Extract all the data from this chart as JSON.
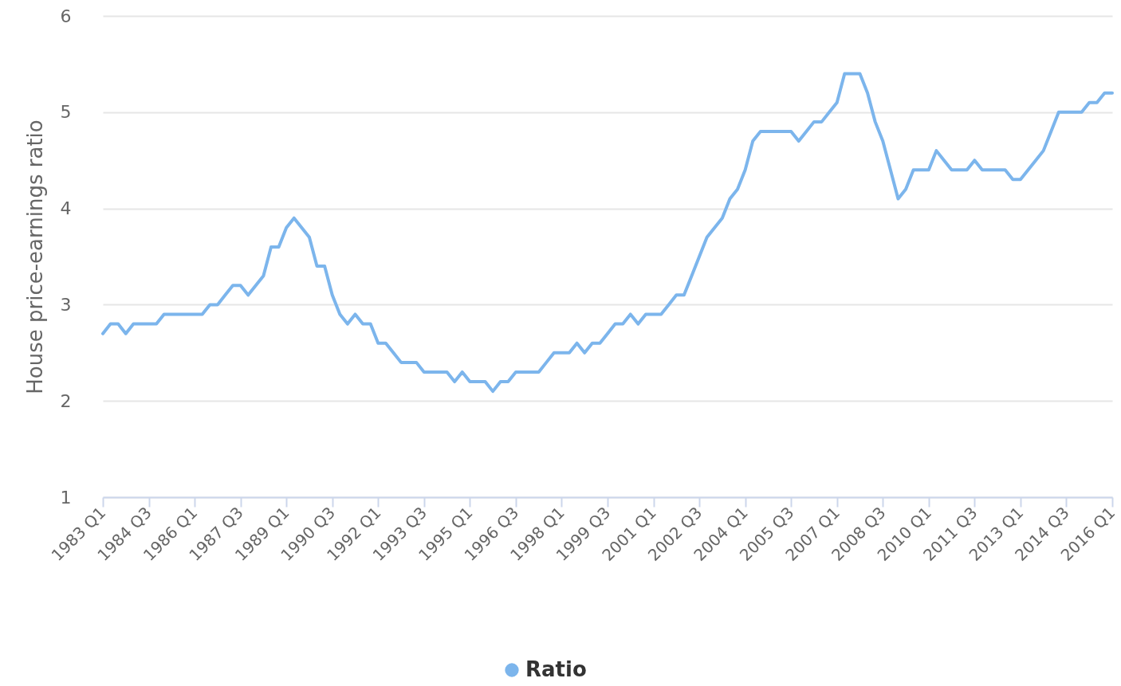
{
  "chart_data": {
    "type": "line",
    "ylabel": "House price-earnings ratio",
    "categories": [
      "1983 Q1",
      null,
      null,
      null,
      null,
      null,
      "1984 Q3",
      null,
      null,
      null,
      null,
      null,
      "1986 Q1",
      null,
      null,
      null,
      null,
      null,
      "1987 Q3",
      null,
      null,
      null,
      null,
      null,
      "1989 Q1",
      null,
      null,
      null,
      null,
      null,
      "1990 Q3",
      null,
      null,
      null,
      null,
      null,
      "1992 Q1",
      null,
      null,
      null,
      null,
      null,
      "1993 Q3",
      null,
      null,
      null,
      null,
      null,
      "1995 Q1",
      null,
      null,
      null,
      null,
      null,
      "1996 Q3",
      null,
      null,
      null,
      null,
      null,
      "1998 Q1",
      null,
      null,
      null,
      null,
      null,
      "1999 Q3",
      null,
      null,
      null,
      null,
      null,
      "2001 Q1",
      null,
      null,
      null,
      null,
      null,
      "2002 Q3",
      null,
      null,
      null,
      null,
      null,
      "2004 Q1",
      null,
      null,
      null,
      null,
      null,
      "2005 Q3",
      null,
      null,
      null,
      null,
      null,
      "2007 Q1",
      null,
      null,
      null,
      null,
      null,
      "2008 Q3",
      null,
      null,
      null,
      null,
      null,
      "2010 Q1",
      null,
      null,
      null,
      null,
      null,
      "2011 Q3",
      null,
      null,
      null,
      null,
      null,
      "2013 Q1",
      null,
      null,
      null,
      null,
      null,
      "2014 Q3",
      null,
      null,
      null,
      null,
      null,
      "2016 Q1"
    ],
    "series": [
      {
        "name": "Ratio",
        "color": "#7cb5ec",
        "values": [
          2.7,
          2.8,
          2.8,
          2.7,
          2.8,
          2.8,
          2.8,
          2.8,
          2.9,
          2.9,
          2.9,
          2.9,
          2.9,
          2.9,
          3.0,
          3.0,
          3.1,
          3.2,
          3.2,
          3.1,
          3.2,
          3.3,
          3.6,
          3.6,
          3.8,
          3.9,
          3.8,
          3.7,
          3.4,
          3.4,
          3.1,
          2.9,
          2.8,
          2.9,
          2.8,
          2.8,
          2.6,
          2.6,
          2.5,
          2.4,
          2.4,
          2.4,
          2.3,
          2.3,
          2.3,
          2.3,
          2.2,
          2.3,
          2.2,
          2.2,
          2.2,
          2.1,
          2.2,
          2.2,
          2.3,
          2.3,
          2.3,
          2.3,
          2.4,
          2.5,
          2.5,
          2.5,
          2.6,
          2.5,
          2.6,
          2.6,
          2.7,
          2.8,
          2.8,
          2.9,
          2.8,
          2.9,
          2.9,
          2.9,
          3.0,
          3.1,
          3.1,
          3.3,
          3.5,
          3.7,
          3.8,
          3.9,
          4.1,
          4.2,
          4.4,
          4.7,
          4.8,
          4.8,
          4.8,
          4.8,
          4.8,
          4.7,
          4.8,
          4.9,
          4.9,
          5.0,
          5.1,
          5.4,
          5.4,
          5.4,
          5.2,
          4.9,
          4.7,
          4.4,
          4.1,
          4.2,
          4.4,
          4.4,
          4.4,
          4.6,
          4.5,
          4.4,
          4.4,
          4.4,
          4.5,
          4.4,
          4.4,
          4.4,
          4.4,
          4.3,
          4.3,
          4.4,
          4.5,
          4.6,
          4.8,
          5.0,
          5.0,
          5.0,
          5.0,
          5.1,
          5.1,
          5.2,
          5.2
        ]
      }
    ],
    "ylim": [
      1,
      6
    ],
    "yticks": [
      1,
      2,
      3,
      4,
      5,
      6
    ],
    "grid": "y",
    "legend": "bottom",
    "marker": "none",
    "line_style": "solid"
  }
}
